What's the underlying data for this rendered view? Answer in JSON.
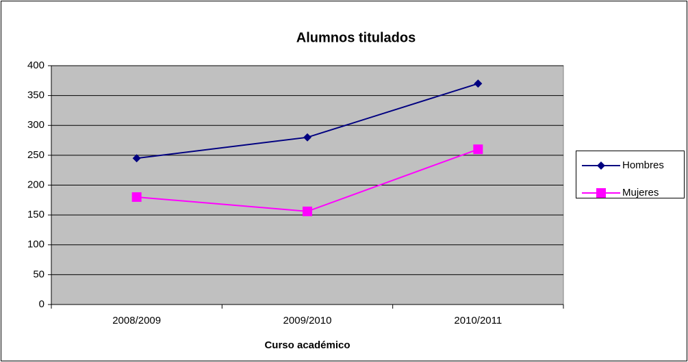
{
  "chart_data": {
    "type": "line",
    "title": "Alumnos titulados",
    "x_label": "Curso académico",
    "categories": [
      "2008/2009",
      "2009/2010",
      "2010/2011"
    ],
    "series": [
      {
        "name": "Hombres",
        "color": "#000080",
        "marker": "diamond",
        "values": [
          245,
          280,
          370
        ]
      },
      {
        "name": "Mujeres",
        "color": "#ff00ff",
        "marker": "square",
        "values": [
          180,
          156,
          260
        ]
      }
    ],
    "ylim": [
      0,
      400
    ],
    "yticks": [
      0,
      50,
      100,
      150,
      200,
      250,
      300,
      350,
      400
    ],
    "grid": true,
    "legend": "right",
    "plot_background": "#c0c0c0"
  }
}
